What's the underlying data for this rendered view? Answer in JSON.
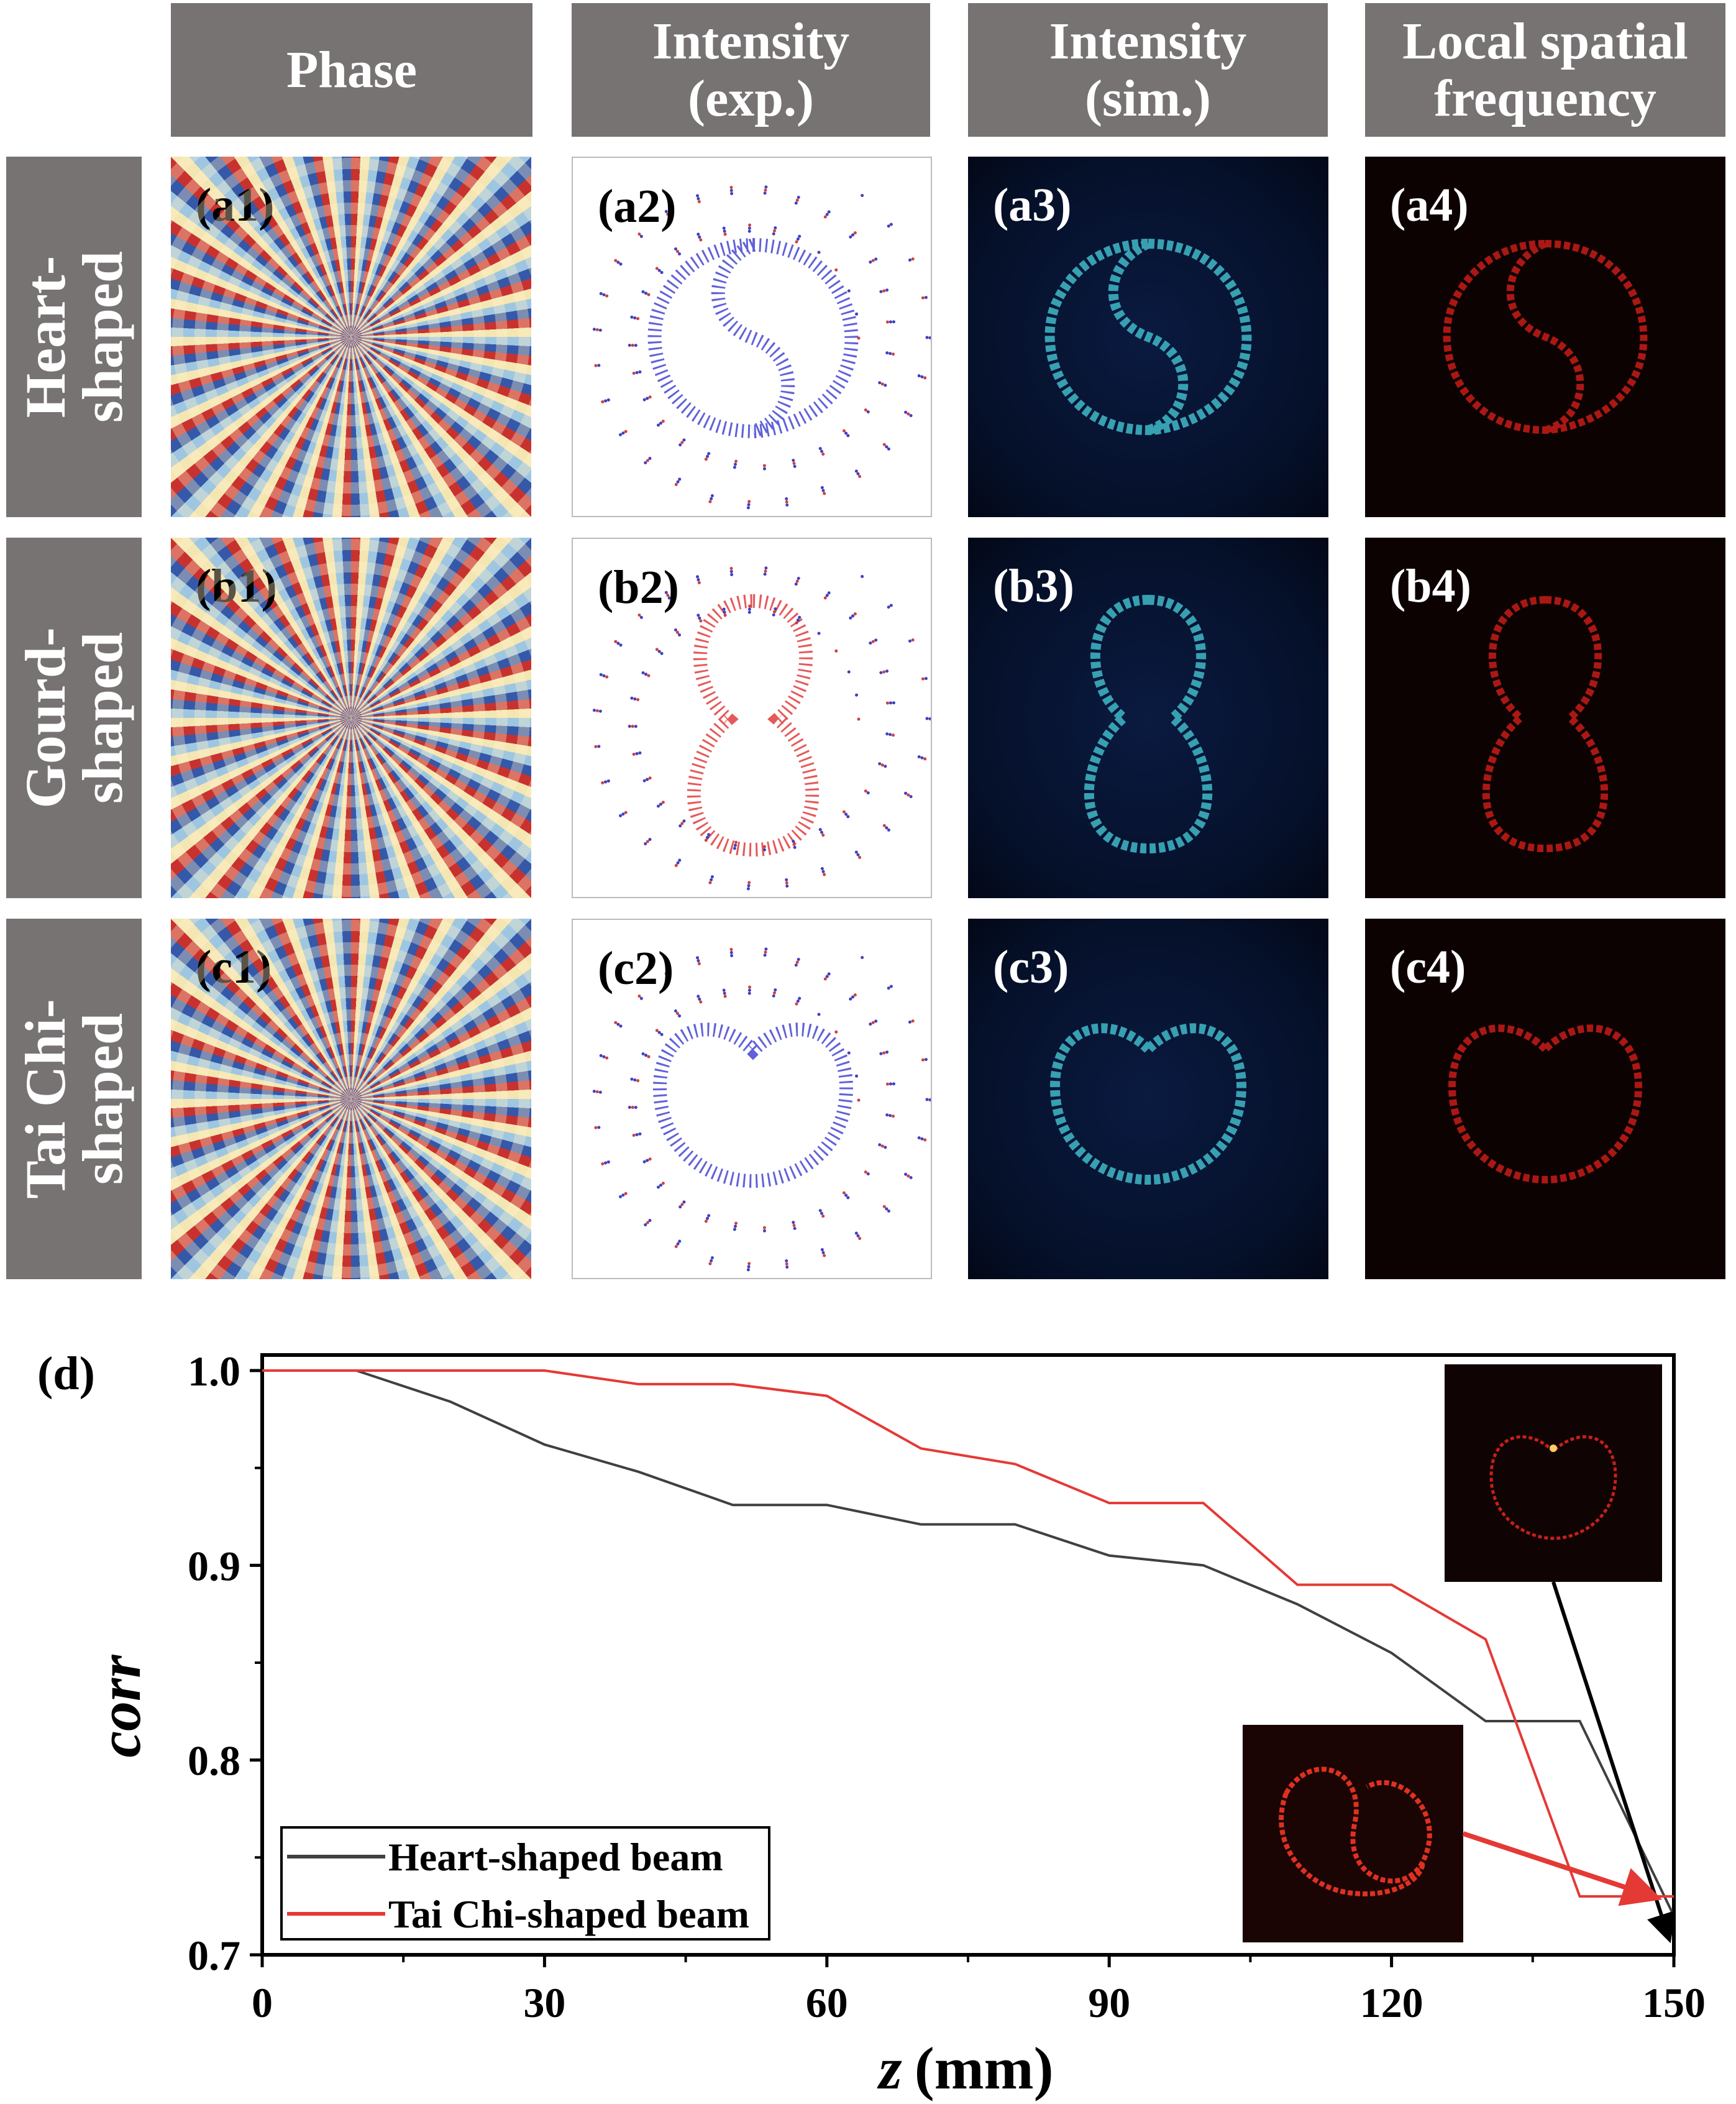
{
  "headers": [
    "Phase",
    "Intensity\n(exp.)",
    "Intensity\n(sim.)",
    "Local spatial\nfrequency"
  ],
  "rows": [
    {
      "label": "Heart-\nshaped",
      "panels": [
        "(a1)",
        "(a2)",
        "(a3)",
        "(a4)"
      ]
    },
    {
      "label": "Gourd-\nshaped",
      "panels": [
        "(b1)",
        "(b2)",
        "(b3)",
        "(b4)"
      ]
    },
    {
      "label": "Tai Chi-\nshaped",
      "panels": [
        "(c1)",
        "(c2)",
        "(c3)",
        "(c4)"
      ]
    }
  ],
  "colors": {
    "header_bg": "#767372",
    "heart_line": "#404040",
    "taichi_line": "#e53935",
    "sim_ring": "#3fb8c8",
    "lsf_ring": "#e0201a"
  },
  "chart_data": {
    "type": "line",
    "panel_label": "(d)",
    "title": "",
    "xlabel": "z (mm)",
    "xlabel_var": "z",
    "xlabel_unit": "(mm)",
    "ylabel": "corr",
    "xlim": [
      0,
      150
    ],
    "ylim": [
      0.7,
      1.0
    ],
    "xticks": [
      0,
      30,
      60,
      90,
      120,
      150
    ],
    "yticks": [
      0.7,
      0.8,
      0.9,
      1.0
    ],
    "ytick_labels": [
      "0.7",
      "0.8",
      "0.9",
      "1.0"
    ],
    "grid": false,
    "legend_position": "bottom-left",
    "x": [
      0,
      10,
      20,
      30,
      40,
      50,
      60,
      70,
      80,
      90,
      100,
      110,
      120,
      130,
      140,
      150
    ],
    "series": [
      {
        "name": "Heart-shaped beam",
        "color": "#404040",
        "values": [
          1.0,
          1.0,
          0.984,
          0.962,
          0.948,
          0.931,
          0.931,
          0.921,
          0.921,
          0.905,
          0.9,
          0.88,
          0.855,
          0.82,
          0.82,
          0.72
        ]
      },
      {
        "name": "Tai Chi-shaped beam",
        "color": "#e53935",
        "values": [
          1.0,
          1.0,
          1.0,
          1.0,
          0.993,
          0.993,
          0.987,
          0.96,
          0.952,
          0.932,
          0.932,
          0.89,
          0.89,
          0.862,
          0.73,
          0.73
        ]
      }
    ],
    "insets": [
      {
        "name": "tai-chi-inset",
        "description": "Tai Chi-shaped local spatial frequency at z=150",
        "arrow_to_series": "Heart-shaped beam"
      },
      {
        "name": "heart-inset",
        "description": "Heart-shaped local spatial frequency at z=150",
        "arrow_to_series": "Tai Chi-shaped beam"
      }
    ]
  }
}
